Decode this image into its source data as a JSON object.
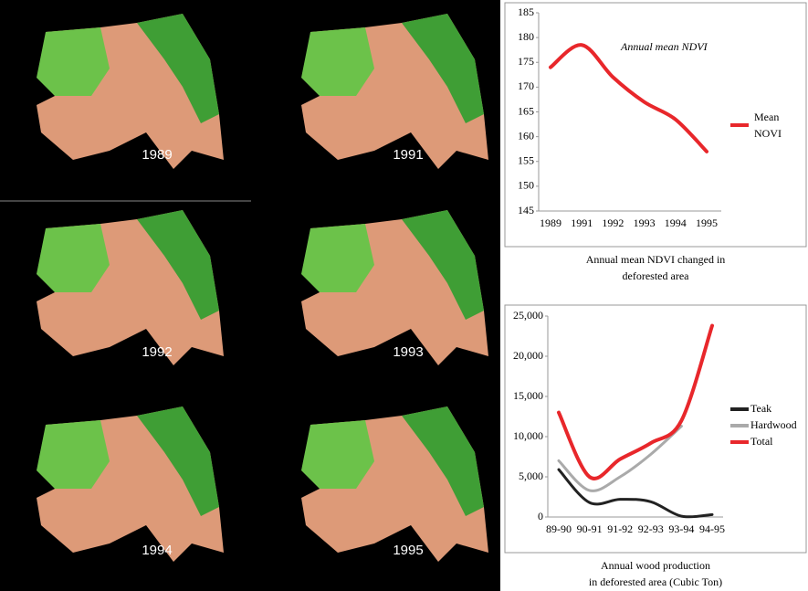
{
  "maps": [
    {
      "label": "1989"
    },
    {
      "label": "1991"
    },
    {
      "label": "1992"
    },
    {
      "label": "1993"
    },
    {
      "label": "1994"
    },
    {
      "label": "1995"
    }
  ],
  "chart_data": [
    {
      "type": "line",
      "annotation": "Annual mean NDVI",
      "caption": [
        "Annual mean NDVI changed in",
        "deforested area"
      ],
      "categories": [
        "1989",
        "1991",
        "1992",
        "1993",
        "1994",
        "1995"
      ],
      "series": [
        {
          "name": "Mean NOVI",
          "color": "#e8272b",
          "values": [
            174,
            178.5,
            172,
            167,
            163.5,
            157
          ]
        }
      ],
      "ylim": [
        145,
        185
      ],
      "yticks": [
        145,
        150,
        155,
        160,
        165,
        170,
        175,
        180,
        185
      ],
      "grid": false
    },
    {
      "type": "line",
      "caption": [
        "Annual wood production",
        "in deforested area (Cubic Ton)"
      ],
      "categories": [
        "89-90",
        "90-91",
        "91-92",
        "92-93",
        "93-94",
        "94-95"
      ],
      "series": [
        {
          "name": "Teak",
          "color": "#222222",
          "values": [
            5900,
            1800,
            2200,
            1900,
            100,
            300
          ]
        },
        {
          "name": "Hardwood",
          "color": "#aaaaaa",
          "values": [
            7000,
            3300,
            5000,
            7800,
            11300,
            null
          ]
        },
        {
          "name": "Total",
          "color": "#e8272b",
          "values": [
            13000,
            5000,
            7200,
            9200,
            12000,
            23800
          ]
        }
      ],
      "ylim": [
        0,
        25000
      ],
      "yticks": [
        0,
        {
          "value": 5000,
          "label": "5,000"
        },
        {
          "value": 10000,
          "label": "10,000"
        },
        {
          "value": 15000,
          "label": "15,000"
        },
        {
          "value": 20000,
          "label": "20,000"
        },
        {
          "value": 25000,
          "label": "25,000"
        }
      ],
      "grid": false
    }
  ]
}
